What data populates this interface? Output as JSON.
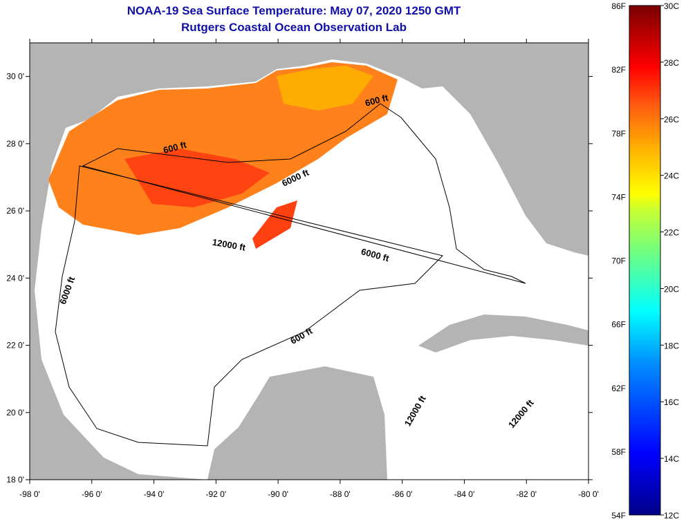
{
  "title": "NOAA-19 Sea Surface Temperature:  May 07, 2020 1250 GMT",
  "subtitle": "Rutgers Coastal Ocean Observation Lab",
  "map": {
    "lon_range": [
      -98,
      -80
    ],
    "lat_range": [
      18,
      31
    ],
    "lon_ticks": [
      "-98 0'",
      "-96 0'",
      "-94 0'",
      "-92 0'",
      "-90 0'",
      "-88 0'",
      "-86 0'",
      "-84 0'",
      "-82 0'",
      "-80 0'"
    ],
    "lat_ticks": [
      "18 0'",
      "20 0'",
      "22 0'",
      "24 0'",
      "26 0'",
      "28 0'",
      "30 0'"
    ],
    "contour_labels": [
      {
        "text": "600 ft",
        "lon": -93.3,
        "lat": 27.8,
        "rot": -15
      },
      {
        "text": "600 ft",
        "lon": -86.8,
        "lat": 29.2,
        "rot": -15
      },
      {
        "text": "6000 ft",
        "lon": -89.4,
        "lat": 26.9,
        "rot": -25
      },
      {
        "text": "12000 ft",
        "lon": -91.6,
        "lat": 24.9,
        "rot": 10
      },
      {
        "text": "6000 ft",
        "lon": -86.9,
        "lat": 24.6,
        "rot": 15
      },
      {
        "text": "6000 ft",
        "lon": -96.7,
        "lat": 23.6,
        "rot": -70
      },
      {
        "text": "600 ft",
        "lon": -89.2,
        "lat": 22.2,
        "rot": -30
      },
      {
        "text": "12000 ft",
        "lon": -85.5,
        "lat": 20,
        "rot": -60
      },
      {
        "text": "12000 ft",
        "lon": -82.1,
        "lat": 19.9,
        "rot": -50
      }
    ]
  },
  "colorbar": {
    "f_labels": [
      "86F",
      "82F",
      "78F",
      "74F",
      "70F",
      "66F",
      "62F",
      "58F",
      "54F"
    ],
    "c_labels": [
      "30C",
      "28C",
      "26C",
      "24C",
      "22C",
      "20C",
      "18C",
      "16C",
      "14C",
      "12C"
    ],
    "range_c": [
      12,
      30
    ]
  },
  "colors": {
    "title": "#1010a8",
    "land": "#b4b4b4",
    "ocean": "#ffffff"
  }
}
